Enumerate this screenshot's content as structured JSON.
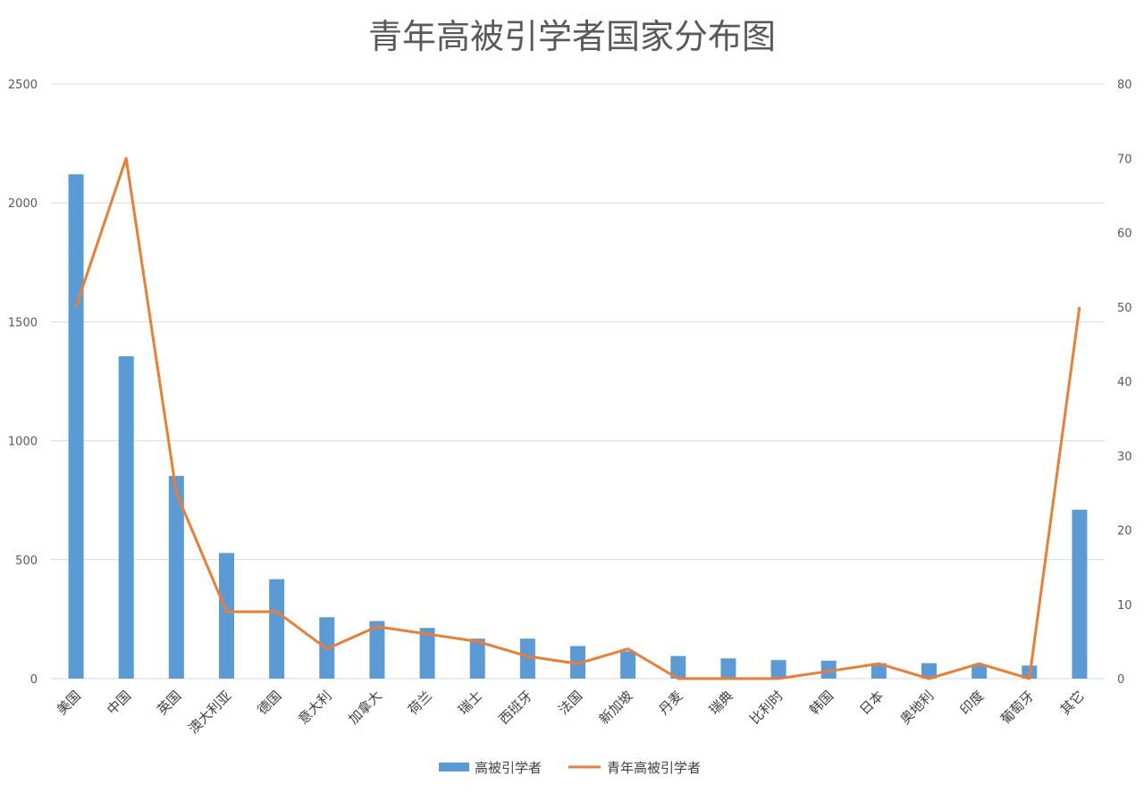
{
  "chart_data": {
    "type": "bar",
    "title": "青年高被引学者国家分布图",
    "categories": [
      "美国",
      "中国",
      "英国",
      "澳大利亚",
      "德国",
      "意大利",
      "加拿大",
      "荷兰",
      "瑞士",
      "西班牙",
      "法国",
      "新加坡",
      "丹麦",
      "瑞典",
      "比利时",
      "韩国",
      "日本",
      "奥地利",
      "印度",
      "葡萄牙",
      "其它"
    ],
    "series": [
      {
        "name": "高被引学者",
        "type": "bar",
        "axis": "left",
        "color": "#5B9BD5",
        "values": [
          2120,
          1355,
          852,
          528,
          418,
          258,
          242,
          213,
          168,
          168,
          137,
          115,
          95,
          85,
          78,
          75,
          65,
          65,
          58,
          55,
          710
        ]
      },
      {
        "name": "青年高被引学者",
        "type": "line",
        "axis": "right",
        "color": "#ED7D31",
        "values": [
          50,
          70,
          25,
          9,
          9,
          4,
          7,
          6,
          5,
          3,
          2,
          4,
          0,
          0,
          0,
          1,
          2,
          0,
          2,
          0,
          50
        ]
      }
    ],
    "ylim_left": [
      0,
      2500
    ],
    "yticks_left": [
      "0",
      "500",
      "1000",
      "1500",
      "2000",
      "2500"
    ],
    "ylim_right": [
      0,
      80
    ],
    "yticks_right": [
      "0",
      "10",
      "20",
      "30",
      "40",
      "50",
      "60",
      "70",
      "80"
    ],
    "grid": true,
    "gridline_color": "#d9d9d9",
    "legend_position": "bottom"
  }
}
